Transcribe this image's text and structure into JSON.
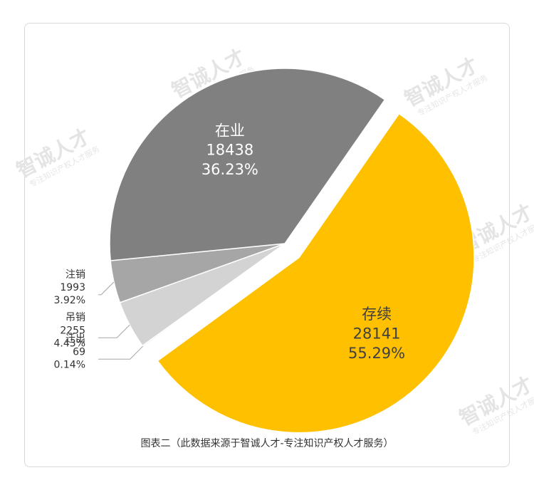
{
  "chart_data": {
    "type": "pie",
    "title": "",
    "caption": "图表二（此数据来源于智诚人才-专注知识产权人才服务）",
    "slices": [
      {
        "name": "存续",
        "value": 28141,
        "percent": "55.29%",
        "color": "#FFC000",
        "exploded": true
      },
      {
        "name": "迁出",
        "value": 69,
        "percent": "0.14%",
        "color": "#E6E6E6",
        "exploded": false
      },
      {
        "name": "吊销",
        "value": 2255,
        "percent": "4.43%",
        "color": "#D3D3D3",
        "exploded": false
      },
      {
        "name": "注销",
        "value": 1993,
        "percent": "3.92%",
        "color": "#A6A6A6",
        "exploded": false
      },
      {
        "name": "在业",
        "value": 18438,
        "percent": "36.23%",
        "color": "#808080",
        "exploded": false
      }
    ],
    "legend": "none"
  },
  "watermark": {
    "text": "智诚人才",
    "subtext": "专注知识产权人才服务"
  }
}
